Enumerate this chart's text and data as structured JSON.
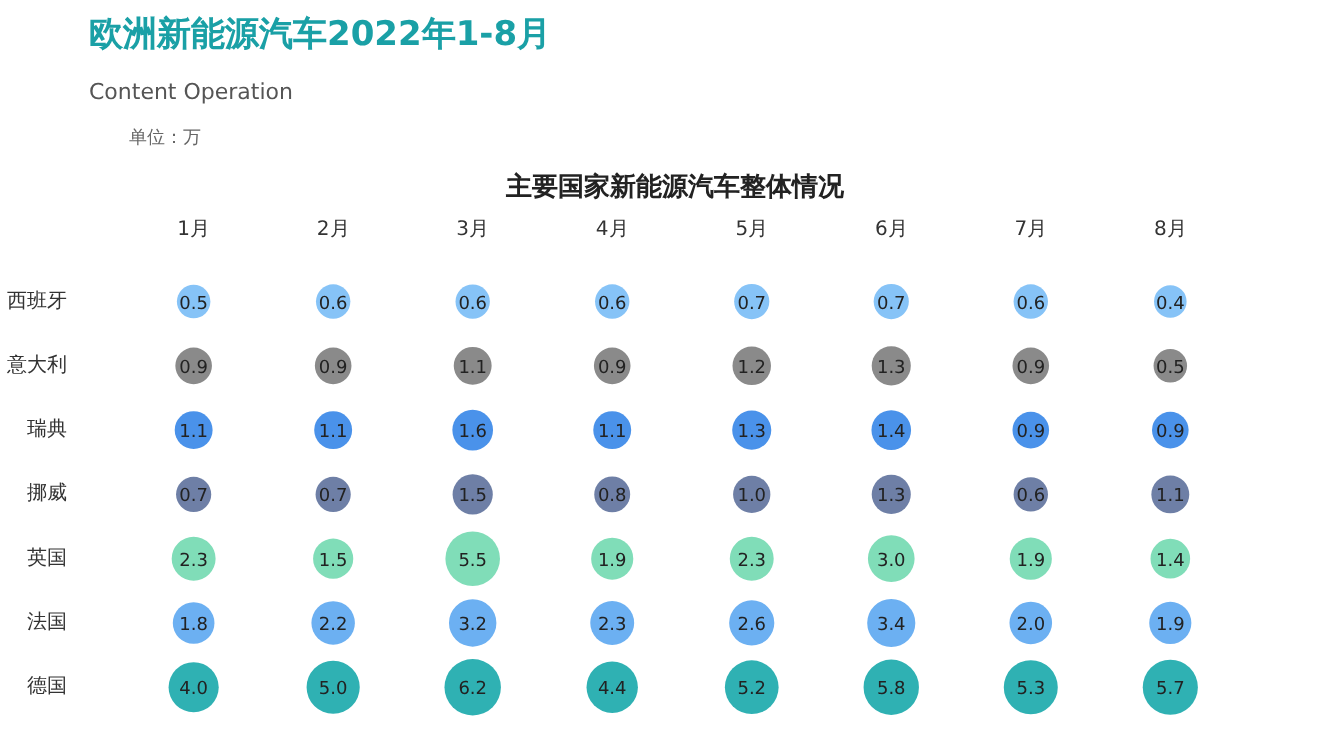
{
  "chart_data": {
    "type": "heatmap",
    "title": "欧洲新能源汽车2022年1-8月",
    "subtitle": "Content Operation",
    "annotations": [
      "主要国家新能源汽车整体情况",
      "单位：万"
    ],
    "categories": [
      "1月",
      "2月",
      "3月",
      "4月",
      "5月",
      "6月",
      "7月",
      "8月"
    ],
    "y_categories": [
      "西班牙",
      "意大利",
      "瑞典",
      "挪威",
      "英国",
      "法国",
      "德国"
    ],
    "cells": [
      [
        0.5,
        0.6,
        0.6,
        0.6,
        0.7,
        0.7,
        0.6,
        0.4
      ],
      [
        0.9,
        0.9,
        1.1,
        0.9,
        1.2,
        1.3,
        0.9,
        0.5
      ],
      [
        1.1,
        1.1,
        1.6,
        1.1,
        1.3,
        1.4,
        0.9,
        0.9
      ],
      [
        0.7,
        0.7,
        1.5,
        0.8,
        1.0,
        1.3,
        0.6,
        1.1
      ],
      [
        2.3,
        1.5,
        5.5,
        1.9,
        2.3,
        3.0,
        1.9,
        1.4
      ],
      [
        1.8,
        2.2,
        3.2,
        2.3,
        2.6,
        3.4,
        2.0,
        1.9
      ],
      [
        4.0,
        5.0,
        6.2,
        4.4,
        5.2,
        5.8,
        5.3,
        5.7
      ]
    ],
    "cell_labels": [
      [
        "0.5",
        "0.6",
        "0.6",
        "0.6",
        "0.7",
        "0.7",
        "0.6",
        "0.4"
      ],
      [
        "0.9",
        "0.9",
        "1.1",
        "0.9",
        "1.2",
        "1.3",
        "0.9",
        "0.5"
      ],
      [
        "1.1",
        "1.1",
        "1.6",
        "1.1",
        "1.3",
        "1.4",
        "0.9",
        "0.9"
      ],
      [
        "0.7",
        "0.7",
        "1.5",
        "0.8",
        "1.0",
        "1.3",
        "0.6",
        "1.1"
      ],
      [
        "2.3",
        "1.5",
        "5.5",
        "1.9",
        "2.3",
        "3.0",
        "1.9",
        "1.4"
      ],
      [
        "1.8",
        "2.2",
        "3.2",
        "2.3",
        "2.6",
        "3.4",
        "2.0",
        "1.9"
      ],
      [
        "4.0",
        "5.0",
        "6.2",
        "4.4",
        "5.2",
        "5.8",
        "5.3",
        "5.7"
      ]
    ],
    "colors": [
      "#86c3f7",
      "#8a8a8a",
      "#4a92ea",
      "#6e7fa6",
      "#80ddb8",
      "#6cb0f2",
      "#2fb1b3"
    ],
    "data_labels": true
  }
}
